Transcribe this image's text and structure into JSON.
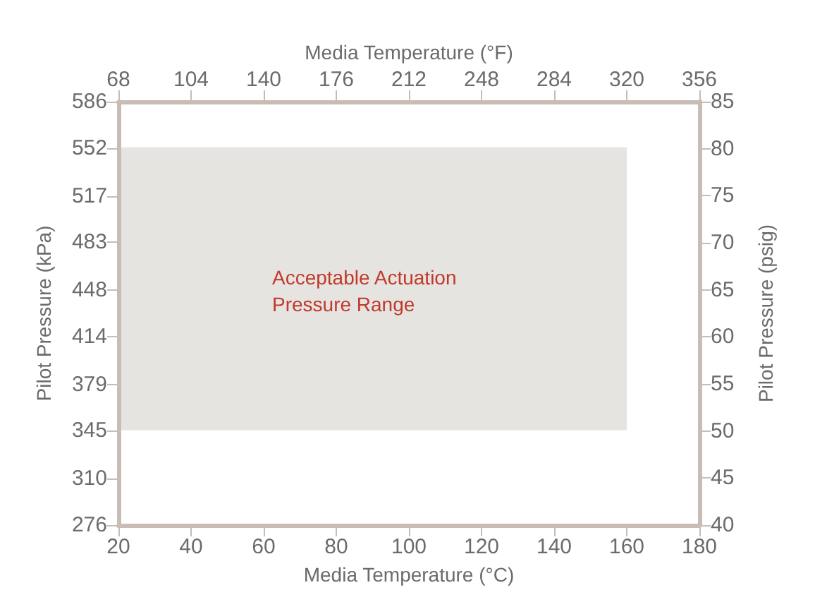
{
  "chart_data": {
    "type": "area",
    "xlabel": "Media Temperature (°C)",
    "x2label": "Media Temperature (°F)",
    "ylabel": "Pilot Pressure (kPa)",
    "y2label": "Pilot Pressure (psig)",
    "xlim": [
      20,
      180
    ],
    "xticks": [
      20,
      40,
      60,
      80,
      100,
      120,
      140,
      160,
      180
    ],
    "x2lim": [
      68,
      356
    ],
    "x2ticks": [
      68,
      104,
      140,
      176,
      212,
      248,
      284,
      320,
      356
    ],
    "ylim": [
      276,
      586
    ],
    "yticks": [
      276,
      310,
      345,
      379,
      414,
      448,
      483,
      517,
      552,
      586
    ],
    "y2lim": [
      40,
      85
    ],
    "y2ticks": [
      40,
      45,
      50,
      55,
      60,
      65,
      70,
      75,
      80,
      85
    ],
    "x": [
      20,
      160
    ],
    "series": [
      {
        "values": [
          552,
          552
        ],
        "color": "#e6e4e0"
      },
      {
        "values": [
          345,
          345
        ],
        "color": "#ffffff"
      }
    ],
    "annotations": [
      "Acceptable Actuation\nPressure Range"
    ],
    "grid": false
  }
}
